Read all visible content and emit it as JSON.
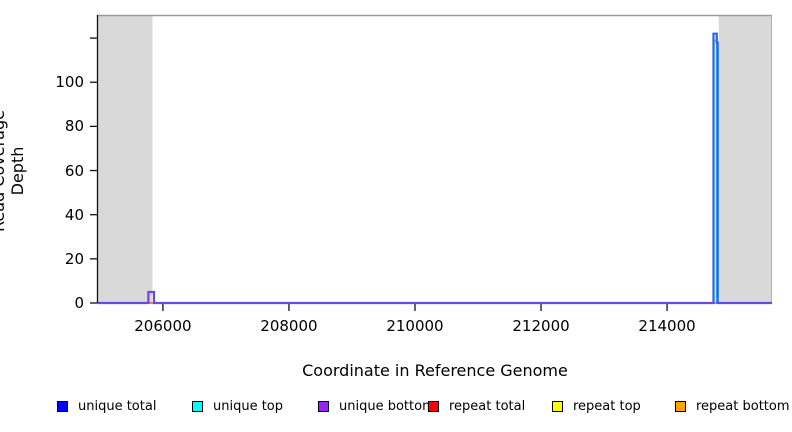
{
  "chart_data": {
    "type": "line",
    "title": "",
    "xlabel": "Coordinate in Reference Genome",
    "ylabel": "Read Coverage Depth",
    "x_range": [
      204970,
      215665
    ],
    "y_range": [
      0,
      130
    ],
    "grid": false,
    "x_ticks": [
      {
        "value": 206000,
        "label": "206000"
      },
      {
        "value": 208000,
        "label": "208000"
      },
      {
        "value": 210000,
        "label": "210000"
      },
      {
        "value": 212000,
        "label": "212000"
      },
      {
        "value": 214000,
        "label": "214000"
      }
    ],
    "y_ticks": [
      {
        "value": 0,
        "label": "0"
      },
      {
        "value": 20,
        "label": "20"
      },
      {
        "value": 40,
        "label": "40"
      },
      {
        "value": 60,
        "label": "60"
      },
      {
        "value": 80,
        "label": "80"
      },
      {
        "value": 100,
        "label": "100"
      },
      {
        "value": 120,
        "label": ""
      }
    ],
    "shaded_regions": [
      {
        "from": 204970,
        "to": 205835,
        "color": "#d9d9d9"
      },
      {
        "from": 214820,
        "to": 215665,
        "color": "#d9d9d9"
      }
    ],
    "frame_colors": {
      "top_border": "#999999",
      "right_border": "#b3b3b3",
      "y_axis": "#111111"
    },
    "series": [
      {
        "name": "repeat bottom",
        "color": "#FFA500",
        "width": 1,
        "points": [
          [
            204970,
            0
          ],
          [
            215665,
            0
          ]
        ]
      },
      {
        "name": "repeat top",
        "color": "#FFFF00",
        "width": 1,
        "points": [
          [
            204970,
            0
          ],
          [
            215665,
            0
          ]
        ]
      },
      {
        "name": "repeat total",
        "color": "#FF0000",
        "width": 1,
        "points": [
          [
            204970,
            0
          ],
          [
            215665,
            0
          ]
        ]
      },
      {
        "name": "unique top",
        "color": "#00FFFF",
        "draw_color": "#10c8e8",
        "width": 1.2,
        "fill": "#cfeafc",
        "points": [
          [
            214741,
            0
          ],
          [
            214741,
            119
          ],
          [
            214786,
            119
          ],
          [
            214786,
            0
          ]
        ]
      },
      {
        "name": "unique total",
        "color": "#0000FF",
        "draw_color": "#2f63e8",
        "width": 2.2,
        "points": [
          [
            204970,
            0
          ],
          [
            205770,
            0
          ],
          [
            205770,
            5
          ],
          [
            205858,
            5
          ],
          [
            205858,
            0
          ],
          [
            214736,
            0
          ],
          [
            214736,
            122
          ],
          [
            214789,
            122
          ],
          [
            214789,
            118
          ],
          [
            214804,
            118
          ],
          [
            214804,
            0
          ],
          [
            215665,
            0
          ]
        ]
      },
      {
        "name": "unique bottom",
        "color": "#A020F0",
        "draw_color": "#8a3ae0",
        "width": 1.3,
        "points": [
          [
            204970,
            0
          ],
          [
            205770,
            0
          ],
          [
            205770,
            5
          ],
          [
            205858,
            5
          ],
          [
            205858,
            0
          ],
          [
            215665,
            0
          ]
        ]
      }
    ],
    "legend": {
      "position": "bottom",
      "items": [
        {
          "label": "unique total",
          "color": "#0000FF"
        },
        {
          "label": "unique top",
          "color": "#00FFFF"
        },
        {
          "label": "unique bottom",
          "color": "#A020F0"
        },
        {
          "label": "repeat total",
          "color": "#FF0000"
        },
        {
          "label": "repeat top",
          "color": "#FFFF00"
        },
        {
          "label": "repeat bottom",
          "color": "#FFA500"
        }
      ]
    }
  }
}
